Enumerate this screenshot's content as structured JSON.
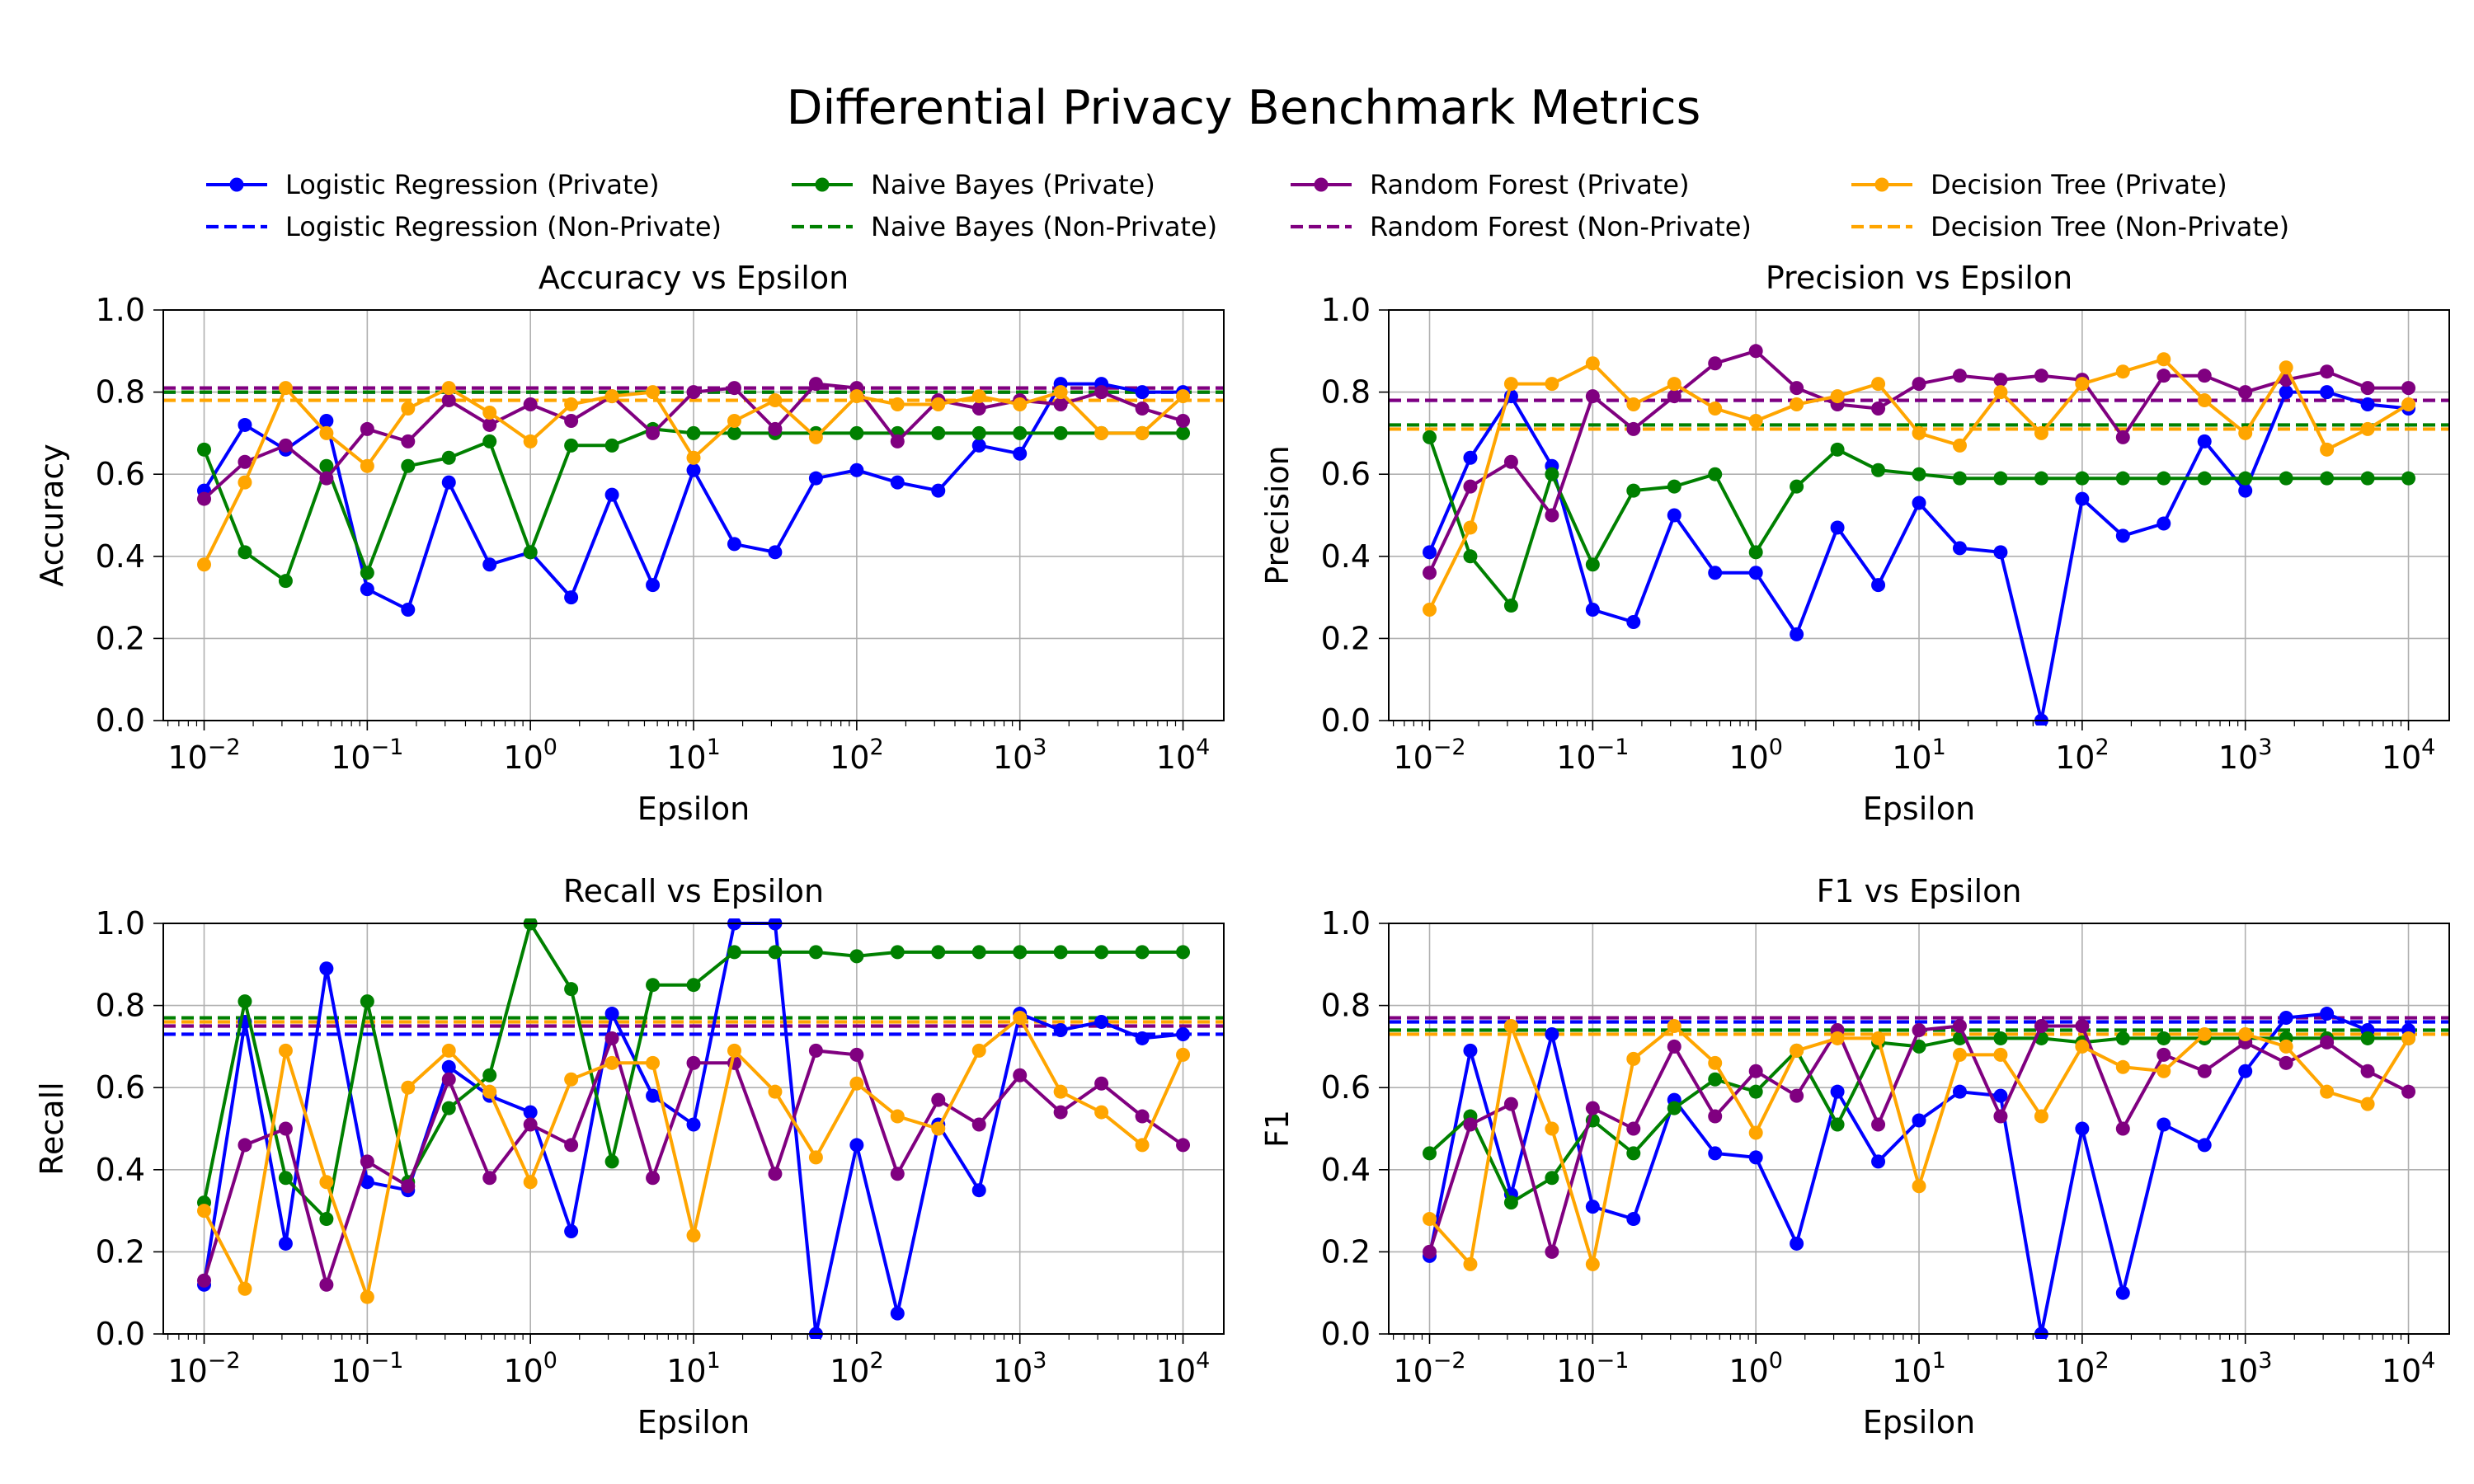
{
  "title": "Differential Privacy Benchmark Metrics",
  "chart_data": {
    "type": "line",
    "x_scale": "log",
    "x": [
      0.01,
      0.01778,
      0.03162,
      0.05623,
      0.1,
      0.1778,
      0.3162,
      0.5623,
      1,
      1.778,
      3.162,
      5.623,
      10,
      17.78,
      31.62,
      56.23,
      100,
      177.8,
      316.2,
      562.3,
      1000,
      1778,
      3162,
      5623,
      10000
    ],
    "x_ticks": [
      0.01,
      0.1,
      1,
      10,
      100,
      1000,
      10000
    ],
    "x_tick_labels": [
      {
        "b": "10",
        "e": "−2"
      },
      {
        "b": "10",
        "e": "−1"
      },
      {
        "b": "10",
        "e": "0"
      },
      {
        "b": "10",
        "e": "1"
      },
      {
        "b": "10",
        "e": "2"
      },
      {
        "b": "10",
        "e": "3"
      },
      {
        "b": "10",
        "e": "4"
      }
    ],
    "xlim": [
      0.00562,
      17783
    ],
    "y_ticks": [
      0.0,
      0.2,
      0.4,
      0.6,
      0.8,
      1.0
    ],
    "y_tick_labels": [
      "0.0",
      "0.2",
      "0.4",
      "0.6",
      "0.8",
      "1.0"
    ],
    "ylim": [
      0.0,
      1.0
    ],
    "grid": true,
    "legend": {
      "placement": "top",
      "columns": 4,
      "entries": [
        {
          "label": "Logistic Regression (Private)",
          "color": "#0000ff",
          "style": "solid-marker"
        },
        {
          "label": "Logistic Regression (Non-Private)",
          "color": "#0000ff",
          "style": "dashed"
        },
        {
          "label": "Naive Bayes (Private)",
          "color": "#008000",
          "style": "solid-marker"
        },
        {
          "label": "Naive Bayes (Non-Private)",
          "color": "#008000",
          "style": "dashed"
        },
        {
          "label": "Random Forest (Private)",
          "color": "#800080",
          "style": "solid-marker"
        },
        {
          "label": "Random Forest (Non-Private)",
          "color": "#800080",
          "style": "dashed"
        },
        {
          "label": "Decision Tree (Private)",
          "color": "#ffa500",
          "style": "solid-marker"
        },
        {
          "label": "Decision Tree (Non-Private)",
          "color": "#ffa500",
          "style": "dashed"
        }
      ]
    },
    "panels": [
      {
        "title": "Accuracy vs Epsilon",
        "xlabel": "Epsilon",
        "ylabel": "Accuracy",
        "series": [
          {
            "color": "#0000ff",
            "values": [
              0.56,
              0.72,
              0.66,
              0.73,
              0.32,
              0.27,
              0.58,
              0.38,
              0.41,
              0.3,
              0.55,
              0.33,
              0.61,
              0.43,
              0.41,
              0.59,
              0.61,
              0.58,
              0.56,
              0.67,
              0.65,
              0.82,
              0.82,
              0.8,
              0.8
            ]
          },
          {
            "color": "#008000",
            "values": [
              0.66,
              0.41,
              0.34,
              0.62,
              0.36,
              0.62,
              0.64,
              0.68,
              0.41,
              0.67,
              0.67,
              0.71,
              0.7,
              0.7,
              0.7,
              0.7,
              0.7,
              0.7,
              0.7,
              0.7,
              0.7,
              0.7,
              0.7,
              0.7,
              0.7
            ]
          },
          {
            "color": "#800080",
            "values": [
              0.54,
              0.63,
              0.67,
              0.59,
              0.71,
              0.68,
              0.78,
              0.72,
              0.77,
              0.73,
              0.79,
              0.7,
              0.8,
              0.81,
              0.71,
              0.82,
              0.81,
              0.68,
              0.78,
              0.76,
              0.78,
              0.77,
              0.8,
              0.76,
              0.73
            ]
          },
          {
            "color": "#ffa500",
            "values": [
              0.38,
              0.58,
              0.81,
              0.7,
              0.62,
              0.76,
              0.81,
              0.75,
              0.68,
              0.77,
              0.79,
              0.8,
              0.64,
              0.73,
              0.78,
              0.69,
              0.79,
              0.77,
              0.77,
              0.79,
              0.77,
              0.8,
              0.7,
              0.7,
              0.79
            ]
          }
        ],
        "baselines": [
          {
            "color": "#0000ff",
            "value": 0.8
          },
          {
            "color": "#008000",
            "value": 0.8
          },
          {
            "color": "#800080",
            "value": 0.81
          },
          {
            "color": "#ffa500",
            "value": 0.78
          }
        ]
      },
      {
        "title": "Precision vs Epsilon",
        "xlabel": "Epsilon",
        "ylabel": "Precision",
        "series": [
          {
            "color": "#0000ff",
            "values": [
              0.41,
              0.64,
              0.79,
              0.62,
              0.27,
              0.24,
              0.5,
              0.36,
              0.36,
              0.21,
              0.47,
              0.33,
              0.53,
              0.42,
              0.41,
              0.0,
              0.54,
              0.45,
              0.48,
              0.68,
              0.56,
              0.8,
              0.8,
              0.77,
              0.76
            ]
          },
          {
            "color": "#008000",
            "values": [
              0.69,
              0.4,
              0.28,
              0.6,
              0.38,
              0.56,
              0.57,
              0.6,
              0.41,
              0.57,
              0.66,
              0.61,
              0.6,
              0.59,
              0.59,
              0.59,
              0.59,
              0.59,
              0.59,
              0.59,
              0.59,
              0.59,
              0.59,
              0.59,
              0.59
            ]
          },
          {
            "color": "#800080",
            "values": [
              0.36,
              0.57,
              0.63,
              0.5,
              0.79,
              0.71,
              0.79,
              0.87,
              0.9,
              0.81,
              0.77,
              0.76,
              0.82,
              0.84,
              0.83,
              0.84,
              0.83,
              0.69,
              0.84,
              0.84,
              0.8,
              0.83,
              0.85,
              0.81,
              0.81
            ]
          },
          {
            "color": "#ffa500",
            "values": [
              0.27,
              0.47,
              0.82,
              0.82,
              0.87,
              0.77,
              0.82,
              0.76,
              0.73,
              0.77,
              0.79,
              0.82,
              0.7,
              0.67,
              0.8,
              0.7,
              0.82,
              0.85,
              0.88,
              0.78,
              0.7,
              0.86,
              0.66,
              0.71,
              0.77
            ]
          }
        ],
        "baselines": [
          {
            "color": "#0000ff",
            "value": 0.78
          },
          {
            "color": "#008000",
            "value": 0.72
          },
          {
            "color": "#800080",
            "value": 0.78
          },
          {
            "color": "#ffa500",
            "value": 0.71
          }
        ]
      },
      {
        "title": "Recall vs Epsilon",
        "xlabel": "Epsilon",
        "ylabel": "Recall",
        "series": [
          {
            "color": "#0000ff",
            "values": [
              0.12,
              0.76,
              0.22,
              0.89,
              0.37,
              0.35,
              0.65,
              0.58,
              0.54,
              0.25,
              0.78,
              0.58,
              0.51,
              1.0,
              1.0,
              0.0,
              0.46,
              0.05,
              0.51,
              0.35,
              0.78,
              0.74,
              0.76,
              0.72,
              0.73
            ]
          },
          {
            "color": "#008000",
            "values": [
              0.32,
              0.81,
              0.38,
              0.28,
              0.81,
              0.37,
              0.55,
              0.63,
              1.0,
              0.84,
              0.42,
              0.85,
              0.85,
              0.93,
              0.93,
              0.93,
              0.92,
              0.93,
              0.93,
              0.93,
              0.93,
              0.93,
              0.93,
              0.93,
              0.93
            ]
          },
          {
            "color": "#800080",
            "values": [
              0.13,
              0.46,
              0.5,
              0.12,
              0.42,
              0.36,
              0.62,
              0.38,
              0.51,
              0.46,
              0.72,
              0.38,
              0.66,
              0.66,
              0.39,
              0.69,
              0.68,
              0.39,
              0.57,
              0.51,
              0.63,
              0.54,
              0.61,
              0.53,
              0.46
            ]
          },
          {
            "color": "#ffa500",
            "values": [
              0.3,
              0.11,
              0.69,
              0.37,
              0.09,
              0.6,
              0.69,
              0.59,
              0.37,
              0.62,
              0.66,
              0.66,
              0.24,
              0.69,
              0.59,
              0.43,
              0.61,
              0.53,
              0.5,
              0.69,
              0.77,
              0.59,
              0.54,
              0.46,
              0.68
            ]
          }
        ],
        "baselines": [
          {
            "color": "#0000ff",
            "value": 0.73
          },
          {
            "color": "#008000",
            "value": 0.77
          },
          {
            "color": "#800080",
            "value": 0.75
          },
          {
            "color": "#ffa500",
            "value": 0.76
          }
        ]
      },
      {
        "title": "F1 vs Epsilon",
        "xlabel": "Epsilon",
        "ylabel": "F1",
        "series": [
          {
            "color": "#0000ff",
            "values": [
              0.19,
              0.69,
              0.34,
              0.73,
              0.31,
              0.28,
              0.57,
              0.44,
              0.43,
              0.22,
              0.59,
              0.42,
              0.52,
              0.59,
              0.58,
              0.0,
              0.5,
              0.1,
              0.51,
              0.46,
              0.64,
              0.77,
              0.78,
              0.74,
              0.74
            ]
          },
          {
            "color": "#008000",
            "values": [
              0.44,
              0.53,
              0.32,
              0.38,
              0.52,
              0.44,
              0.55,
              0.62,
              0.59,
              0.69,
              0.51,
              0.71,
              0.7,
              0.72,
              0.72,
              0.72,
              0.71,
              0.72,
              0.72,
              0.72,
              0.72,
              0.72,
              0.72,
              0.72,
              0.72
            ]
          },
          {
            "color": "#800080",
            "values": [
              0.2,
              0.51,
              0.56,
              0.2,
              0.55,
              0.5,
              0.7,
              0.53,
              0.64,
              0.58,
              0.74,
              0.51,
              0.74,
              0.75,
              0.53,
              0.75,
              0.75,
              0.5,
              0.68,
              0.64,
              0.71,
              0.66,
              0.71,
              0.64,
              0.59
            ]
          },
          {
            "color": "#ffa500",
            "values": [
              0.28,
              0.17,
              0.75,
              0.5,
              0.17,
              0.67,
              0.75,
              0.66,
              0.49,
              0.69,
              0.72,
              0.72,
              0.36,
              0.68,
              0.68,
              0.53,
              0.7,
              0.65,
              0.64,
              0.73,
              0.73,
              0.7,
              0.59,
              0.56,
              0.72
            ]
          }
        ],
        "baselines": [
          {
            "color": "#0000ff",
            "value": 0.76
          },
          {
            "color": "#008000",
            "value": 0.74
          },
          {
            "color": "#800080",
            "value": 0.77
          },
          {
            "color": "#ffa500",
            "value": 0.73
          }
        ]
      }
    ]
  }
}
